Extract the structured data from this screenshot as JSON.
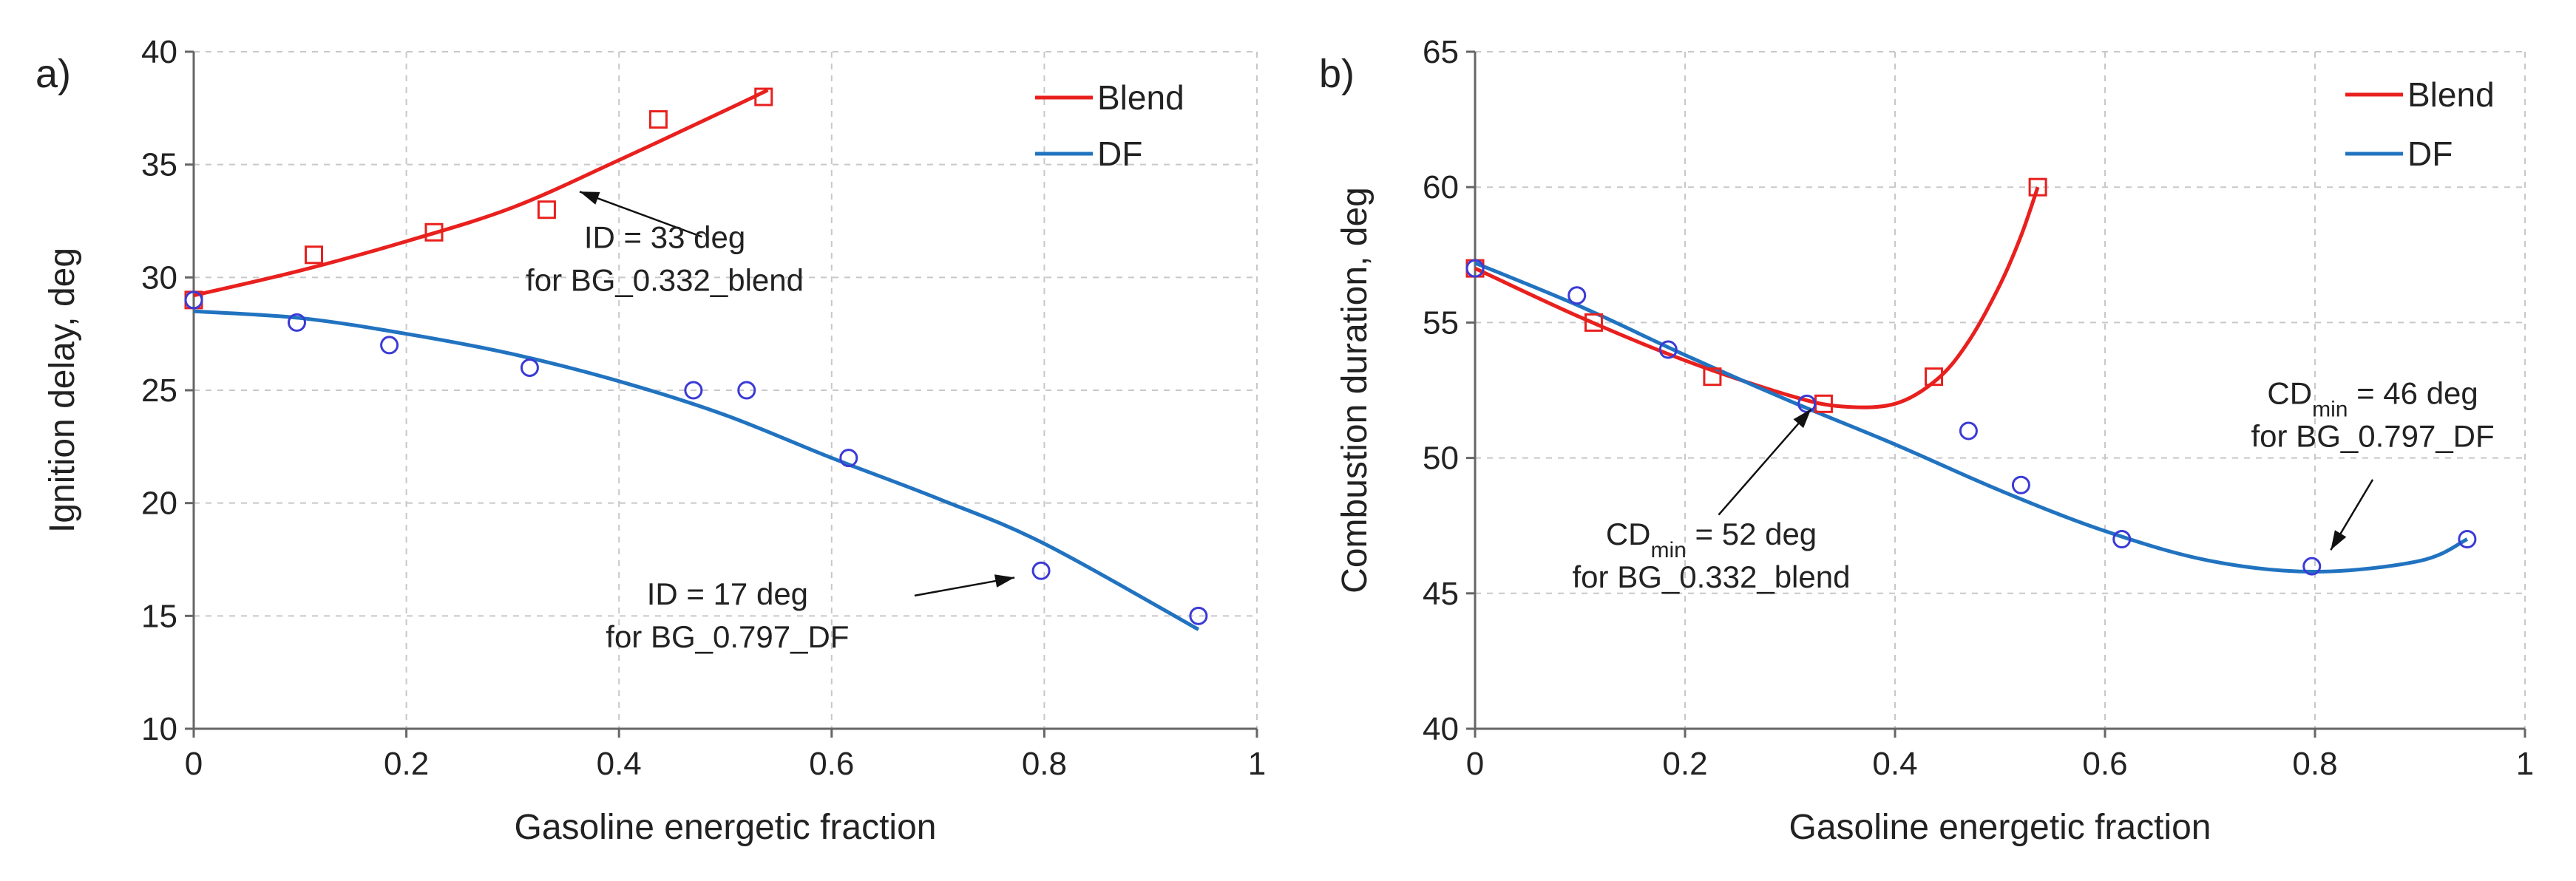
{
  "chart_data": [
    {
      "type": "scatter",
      "panel_label": "a)",
      "xlabel": "Gasoline energetic fraction",
      "ylabel": "Ignition delay, deg",
      "xlim": [
        0,
        1
      ],
      "ylim": [
        10,
        40
      ],
      "xticks": [
        0,
        0.2,
        0.4,
        0.6,
        0.8,
        1
      ],
      "xtick_labels": [
        "0",
        "0.2",
        "0.4",
        "0.6",
        "0.8",
        "1"
      ],
      "yticks": [
        10,
        15,
        20,
        25,
        30,
        35,
        40
      ],
      "ytick_labels": [
        "10",
        "15",
        "20",
        "25",
        "30",
        "35",
        "40"
      ],
      "grid": "dashed",
      "legend_position": "top-right",
      "series": [
        {
          "name": "Blend",
          "color": "#e8201e",
          "marker": "square",
          "points": [
            [
              0,
              29
            ],
            [
              0.113,
              31
            ],
            [
              0.226,
              32
            ],
            [
              0.332,
              33
            ],
            [
              0.437,
              37
            ],
            [
              0.536,
              38
            ]
          ],
          "trend": [
            [
              0,
              29.2
            ],
            [
              0.1,
              30.3
            ],
            [
              0.2,
              31.6
            ],
            [
              0.3,
              33.1
            ],
            [
              0.4,
              35.2
            ],
            [
              0.5,
              37.4
            ],
            [
              0.54,
              38.3
            ]
          ]
        },
        {
          "name": "DF",
          "color": "#2173c0",
          "marker": "circle",
          "points": [
            [
              0,
              29
            ],
            [
              0.097,
              28
            ],
            [
              0.184,
              27
            ],
            [
              0.316,
              26
            ],
            [
              0.47,
              25
            ],
            [
              0.52,
              25
            ],
            [
              0.616,
              22
            ],
            [
              0.797,
              17
            ],
            [
              0.945,
              15
            ]
          ],
          "trend": [
            [
              0,
              28.5
            ],
            [
              0.1,
              28.2
            ],
            [
              0.2,
              27.5
            ],
            [
              0.3,
              26.6
            ],
            [
              0.4,
              25.4
            ],
            [
              0.5,
              23.9
            ],
            [
              0.6,
              22
            ],
            [
              0.7,
              20.2
            ],
            [
              0.8,
              18.2
            ],
            [
              0.945,
              14.4
            ]
          ]
        }
      ],
      "annotations": [
        {
          "lines": [
            "ID = 33 deg",
            "for BG_0.332_blend"
          ],
          "target": [
            0.363,
            33.8
          ],
          "from": [
            0.478,
            31.8
          ],
          "text_anchor": [
            0.443,
            31.3
          ]
        },
        {
          "lines": [
            "ID = 17 deg",
            "for BG_0.797_DF"
          ],
          "target": [
            0.772,
            16.7
          ],
          "from": [
            0.678,
            15.9
          ],
          "text_anchor": [
            0.502,
            15.5
          ]
        }
      ]
    },
    {
      "type": "scatter",
      "panel_label": "b)",
      "xlabel": "Gasoline energetic fraction",
      "ylabel": "Combustion duration, deg",
      "xlim": [
        0,
        1
      ],
      "ylim": [
        40,
        65
      ],
      "xticks": [
        0,
        0.2,
        0.4,
        0.6,
        0.8,
        1
      ],
      "xtick_labels": [
        "0",
        "0.2",
        "0.4",
        "0.6",
        "0.8",
        "1"
      ],
      "yticks": [
        40,
        45,
        50,
        55,
        60,
        65
      ],
      "ytick_labels": [
        "40",
        "45",
        "50",
        "55",
        "60",
        "65"
      ],
      "grid": "dashed",
      "legend_position": "top-right",
      "series": [
        {
          "name": "Blend",
          "color": "#e8201e",
          "marker": "square",
          "points": [
            [
              0,
              57
            ],
            [
              0.113,
              55
            ],
            [
              0.226,
              53
            ],
            [
              0.332,
              52
            ],
            [
              0.437,
              53
            ],
            [
              0.536,
              60
            ]
          ],
          "trend": [
            [
              0,
              57
            ],
            [
              0.1,
              55.2
            ],
            [
              0.2,
              53.6
            ],
            [
              0.3,
              52.3
            ],
            [
              0.35,
              51.9
            ],
            [
              0.4,
              52
            ],
            [
              0.44,
              52.9
            ],
            [
              0.47,
              54.3
            ],
            [
              0.5,
              56.4
            ],
            [
              0.52,
              58.2
            ],
            [
              0.536,
              60
            ]
          ]
        },
        {
          "name": "DF",
          "color": "#2173c0",
          "marker": "circle",
          "points": [
            [
              0,
              57
            ],
            [
              0.097,
              56
            ],
            [
              0.184,
              54
            ],
            [
              0.316,
              52
            ],
            [
              0.47,
              51
            ],
            [
              0.52,
              49
            ],
            [
              0.616,
              47
            ],
            [
              0.797,
              46
            ],
            [
              0.945,
              47
            ]
          ],
          "trend": [
            [
              0,
              57.2
            ],
            [
              0.1,
              55.6
            ],
            [
              0.2,
              53.8
            ],
            [
              0.3,
              52.1
            ],
            [
              0.4,
              50.5
            ],
            [
              0.5,
              48.8
            ],
            [
              0.6,
              47.3
            ],
            [
              0.7,
              46.2
            ],
            [
              0.8,
              45.8
            ],
            [
              0.9,
              46.2
            ],
            [
              0.945,
              47
            ]
          ]
        }
      ],
      "annotations": [
        {
          "base": "CD",
          "sub": "min",
          "rest": " = 52 deg",
          "line2": "for BG_0.332_blend",
          "target": [
            0.32,
            51.8
          ],
          "from": [
            0.232,
            47.9
          ],
          "text_anchor": [
            0.225,
            46.8
          ]
        },
        {
          "base": "CD",
          "sub": "min",
          "rest": " = 46 deg",
          "line2": "for BG_0.797_DF",
          "target": [
            0.815,
            46.6
          ],
          "from": [
            0.855,
            49.2
          ],
          "text_anchor": [
            0.855,
            52
          ]
        }
      ]
    }
  ]
}
